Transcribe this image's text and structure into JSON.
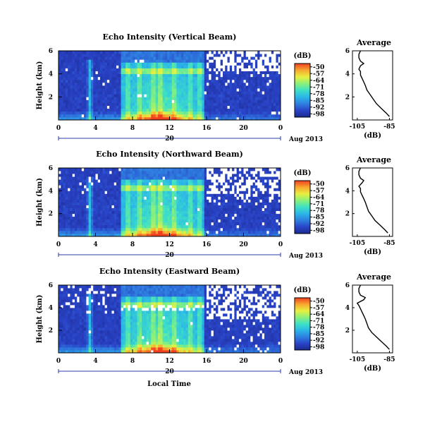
{
  "figure": {
    "time_axis_label": "Local Time",
    "colormap_stops": [
      "#1b2a8f",
      "#2a44c8",
      "#2e7fe0",
      "#2bb6e8",
      "#3ee0c6",
      "#8af07a",
      "#e8f040",
      "#f8a830",
      "#f04020"
    ]
  },
  "chart_data": [
    {
      "type": "heatmap",
      "title": "Echo Intensity (Vertical Beam)",
      "ylabel": "Height (km)",
      "xlim": [
        0,
        24
      ],
      "ylim": [
        0,
        6
      ],
      "x_ticks": [
        "0",
        "4",
        "8",
        "12",
        "16",
        "20",
        "0"
      ],
      "y_ticks": [
        "2",
        "4",
        "6"
      ],
      "date_marker": "20",
      "date_label": "Aug 2013",
      "colorbar": {
        "unit": "(dB)",
        "ticks": [
          "-50",
          "-57",
          "-64",
          "-71",
          "-78",
          "-85",
          "-92",
          "-98"
        ],
        "range": [
          -98,
          -50
        ]
      },
      "average_profile": {
        "title": "Average",
        "xlabel": "(dB)",
        "x_ticks": [
          "-105",
          "-85"
        ],
        "y_ticks": [
          "2",
          "4",
          "6"
        ],
        "xlim": [
          -108,
          -83
        ],
        "ylim": [
          0,
          6
        ],
        "x": [
          -85,
          -87,
          -90,
          -93,
          -95,
          -97,
          -99,
          -100,
          -101,
          -102,
          -103,
          -103,
          -104,
          -103,
          -101,
          -103,
          -104,
          -104,
          -103
        ],
        "y": [
          0.3,
          0.6,
          1.0,
          1.4,
          1.8,
          2.2,
          2.6,
          3.0,
          3.3,
          3.6,
          3.9,
          4.2,
          4.4,
          4.7,
          4.9,
          5.1,
          5.4,
          5.7,
          6.0
        ]
      }
    },
    {
      "type": "heatmap",
      "title": "Echo Intensity (Northward Beam)",
      "ylabel": "Height (km)",
      "xlim": [
        0,
        24
      ],
      "ylim": [
        0,
        6
      ],
      "x_ticks": [
        "0",
        "4",
        "8",
        "12",
        "16",
        "20",
        "0"
      ],
      "y_ticks": [
        "2",
        "4",
        "6"
      ],
      "date_marker": "20",
      "date_label": "Aug 2013",
      "colorbar": {
        "unit": "(dB)",
        "ticks": [
          "-50",
          "-57",
          "-64",
          "-71",
          "-78",
          "-85",
          "-92",
          "-98"
        ],
        "range": [
          -98,
          -50
        ]
      },
      "average_profile": {
        "title": "Average",
        "xlabel": "(dB)",
        "x_ticks": [
          "-105",
          "-85"
        ],
        "y_ticks": [
          "2",
          "4",
          "6"
        ],
        "xlim": [
          -108,
          -83
        ],
        "ylim": [
          0,
          6
        ],
        "x": [
          -86,
          -88,
          -91,
          -94,
          -96,
          -98,
          -99,
          -100,
          -101,
          -102,
          -103,
          -103,
          -104,
          -102,
          -101,
          -103,
          -104,
          -104,
          -103
        ],
        "y": [
          0.3,
          0.6,
          1.0,
          1.4,
          1.8,
          2.2,
          2.6,
          3.0,
          3.3,
          3.6,
          3.9,
          4.2,
          4.4,
          4.7,
          4.9,
          5.1,
          5.4,
          5.7,
          6.0
        ]
      }
    },
    {
      "type": "heatmap",
      "title": "Echo Intensity (Eastward Beam)",
      "ylabel": "Height (km)",
      "xlim": [
        0,
        24
      ],
      "ylim": [
        0,
        6
      ],
      "x_ticks": [
        "0",
        "4",
        "8",
        "12",
        "16",
        "20",
        "0"
      ],
      "y_ticks": [
        "2",
        "4",
        "6"
      ],
      "date_marker": "20",
      "date_label": "Aug 2013",
      "colorbar": {
        "unit": "(dB)",
        "ticks": [
          "-50",
          "-57",
          "-64",
          "-71",
          "-78",
          "-85",
          "-92",
          "-98"
        ],
        "range": [
          -98,
          -50
        ]
      },
      "average_profile": {
        "title": "Average",
        "xlabel": "(dB)",
        "x_ticks": [
          "-105",
          "-85"
        ],
        "y_ticks": [
          "2",
          "4",
          "6"
        ],
        "xlim": [
          -108,
          -83
        ],
        "ylim": [
          0,
          6
        ],
        "x": [
          -85,
          -87,
          -90,
          -93,
          -96,
          -98,
          -99,
          -100,
          -101,
          -102,
          -103,
          -104,
          -105,
          -101,
          -100,
          -103,
          -104,
          -104,
          -103
        ],
        "y": [
          0.3,
          0.6,
          1.0,
          1.4,
          1.8,
          2.2,
          2.6,
          3.0,
          3.3,
          3.6,
          3.9,
          4.2,
          4.4,
          4.7,
          4.9,
          5.1,
          5.4,
          5.7,
          6.0
        ]
      }
    }
  ]
}
